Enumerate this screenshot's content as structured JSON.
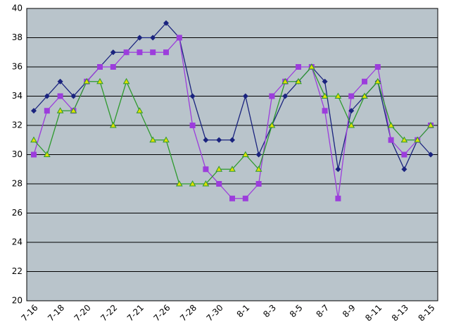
{
  "chart_data": {
    "type": "line",
    "categories": [
      "7-16",
      null,
      "7-18",
      null,
      "7-20",
      null,
      "7-22",
      null,
      "7-21",
      null,
      "7-26",
      null,
      "7-28",
      null,
      "7-30",
      null,
      "8-1",
      null,
      "8-3",
      null,
      "8-5",
      null,
      "8-7",
      null,
      "8-9",
      null,
      "8-11",
      null,
      "8-13",
      null,
      "8-15"
    ],
    "series": [
      {
        "color": "#1a237e",
        "marker": "diamond",
        "values": [
          33,
          34,
          35,
          34,
          35,
          36,
          37,
          37,
          38,
          38,
          39,
          38,
          34,
          31,
          31,
          31,
          34,
          30,
          32,
          34,
          35,
          36,
          35,
          29,
          33,
          34,
          35,
          31,
          29,
          31,
          30
        ]
      },
      {
        "color": "#9c3ddc",
        "marker": "square",
        "values": [
          30,
          33,
          34,
          33,
          35,
          36,
          36,
          37,
          37,
          37,
          37,
          38,
          32,
          29,
          28,
          27,
          27,
          28,
          34,
          35,
          36,
          36,
          33,
          27,
          34,
          35,
          36,
          31,
          30,
          31,
          32
        ]
      },
      {
        "color": "#2e9a2e",
        "marker": "triangle",
        "values": [
          31,
          30,
          33,
          33,
          35,
          35,
          32,
          35,
          33,
          31,
          31,
          28,
          28,
          28,
          29,
          29,
          30,
          29,
          32,
          35,
          35,
          36,
          34,
          34,
          32,
          34,
          35,
          32,
          31,
          31,
          32
        ]
      }
    ],
    "ylim": [
      20,
      40
    ],
    "yticks": [
      20,
      22,
      24,
      26,
      28,
      30,
      32,
      34,
      36,
      38,
      40
    ],
    "grid": true
  }
}
